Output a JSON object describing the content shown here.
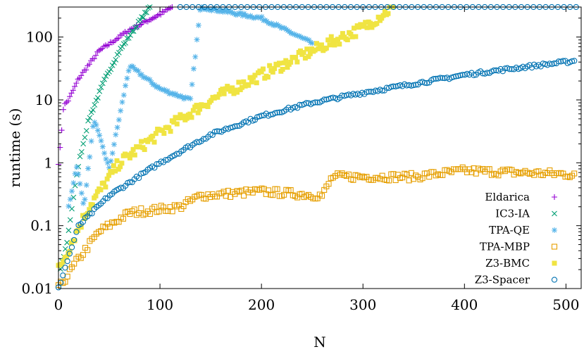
{
  "chart_data": {
    "type": "scatter",
    "xlabel": "N",
    "ylabel": "runtime (s)",
    "xlim": [
      0,
      515
    ],
    "ylim": [
      0.01,
      300
    ],
    "yscale": "log",
    "x_ticks": [
      0,
      100,
      200,
      300,
      400,
      500
    ],
    "y_ticks": [
      0.01,
      0.1,
      1,
      10,
      100
    ],
    "x_tick_labels": [
      "0",
      "100",
      "200",
      "300",
      "400",
      "500"
    ],
    "y_tick_labels": [
      "0.01",
      "0.1",
      "1",
      "10",
      "100"
    ],
    "grid": false,
    "legend_position": "bottom-right",
    "series": [
      {
        "name": "Eldarica",
        "marker": "plus",
        "color": "#9400D3",
        "description_points": [
          [
            0,
            1
          ],
          [
            2,
            1.9
          ],
          [
            5,
            8
          ],
          [
            10,
            10
          ],
          [
            20,
            22
          ],
          [
            40,
            60
          ],
          [
            70,
            130
          ],
          [
            100,
            230
          ],
          [
            112,
            300
          ]
        ]
      },
      {
        "name": "IC3-IA",
        "marker": "x",
        "color": "#009E73",
        "description_points": [
          [
            2,
            0.02
          ],
          [
            8,
            0.05
          ],
          [
            15,
            0.3
          ],
          [
            20,
            1
          ],
          [
            30,
            5
          ],
          [
            45,
            20
          ],
          [
            60,
            60
          ],
          [
            80,
            180
          ],
          [
            90,
            300
          ]
        ]
      },
      {
        "name": "TPA-QE",
        "marker": "asterisk",
        "color": "#56B4E9",
        "description_points": [
          [
            10,
            0.2
          ],
          [
            18,
            0.9
          ],
          [
            25,
            0.2
          ],
          [
            35,
            5
          ],
          [
            50,
            0.8
          ],
          [
            70,
            35
          ],
          [
            100,
            15
          ],
          [
            130,
            10
          ],
          [
            140,
            300
          ],
          [
            200,
            200
          ],
          [
            250,
            80
          ]
        ]
      },
      {
        "name": "TPA-MBP",
        "marker": "square-open",
        "color": "#E69F00",
        "description_points": [
          [
            0,
            0.01
          ],
          [
            20,
            0.03
          ],
          [
            40,
            0.08
          ],
          [
            70,
            0.16
          ],
          [
            120,
            0.2
          ],
          [
            140,
            0.3
          ],
          [
            200,
            0.35
          ],
          [
            260,
            0.3
          ],
          [
            270,
            0.6
          ],
          [
            350,
            0.6
          ],
          [
            400,
            0.75
          ],
          [
            510,
            0.65
          ]
        ]
      },
      {
        "name": "Z3-BMC",
        "marker": "square-filled",
        "color": "#F0E442",
        "description_points": [
          [
            0,
            0.02
          ],
          [
            30,
            0.2
          ],
          [
            60,
            1
          ],
          [
            100,
            3
          ],
          [
            150,
            10
          ],
          [
            200,
            25
          ],
          [
            250,
            60
          ],
          [
            300,
            140
          ],
          [
            330,
            300
          ]
        ]
      },
      {
        "name": "Z3-Spacer",
        "marker": "circle-open",
        "color": "#0072B2",
        "description_points": [
          [
            0,
            0.01
          ],
          [
            20,
            0.1
          ],
          [
            50,
            0.3
          ],
          [
            100,
            1
          ],
          [
            150,
            2.8
          ],
          [
            200,
            5.5
          ],
          [
            250,
            9
          ],
          [
            300,
            13
          ],
          [
            350,
            18
          ],
          [
            400,
            25
          ],
          [
            450,
            32
          ],
          [
            510,
            42
          ]
        ]
      }
    ]
  },
  "legend": {
    "items": [
      "Eldarica",
      "IC3-IA",
      "TPA-QE",
      "TPA-MBP",
      "Z3-BMC",
      "Z3-Spacer"
    ]
  }
}
